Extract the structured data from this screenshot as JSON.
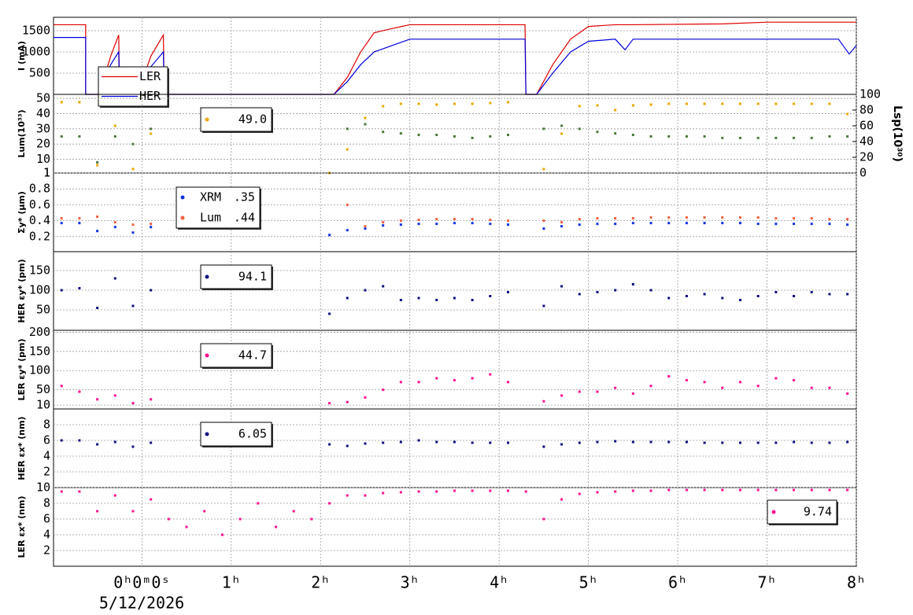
{
  "chart_data": {
    "xlim": [
      -0.99,
      8
    ],
    "xticks": [
      {
        "value": 0,
        "label": "0ʰ0ᵐ0ˢ"
      },
      {
        "value": 1,
        "label": "1ʰ"
      },
      {
        "value": 2,
        "label": "2ʰ"
      },
      {
        "value": 3,
        "label": "3ʰ"
      },
      {
        "value": 4,
        "label": "4ʰ"
      },
      {
        "value": 5,
        "label": "5ʰ"
      },
      {
        "value": 6,
        "label": "6ʰ"
      },
      {
        "value": 7,
        "label": "7ʰ"
      },
      {
        "value": 8,
        "label": "8ʰ"
      }
    ],
    "xlabel": "5/12/2026",
    "grid": true,
    "x": [
      -0.9,
      -0.7,
      -0.5,
      -0.3,
      -0.1,
      0.1,
      0.3,
      0.5,
      0.7,
      0.9,
      1.1,
      1.3,
      1.5,
      1.7,
      1.9,
      2.1,
      2.3,
      2.5,
      2.7,
      2.9,
      3.1,
      3.3,
      3.5,
      3.7,
      3.9,
      4.1,
      4.3,
      4.5,
      4.7,
      4.9,
      5.1,
      5.3,
      5.5,
      5.7,
      5.9,
      6.1,
      6.3,
      6.5,
      6.7,
      6.9,
      7.1,
      7.3,
      7.5,
      7.7,
      7.9
    ],
    "panels": [
      {
        "type": "line",
        "ylabel": "I (mA)",
        "ylim": [
          0,
          1815
        ],
        "yticks": [
          500,
          1000,
          1500
        ],
        "x": [
          -0.99,
          -0.63,
          -0.63,
          -0.48,
          -0.35,
          -0.26,
          -0.25,
          -0.05,
          0.1,
          0.24,
          0.25,
          2.15,
          2.3,
          2.45,
          2.6,
          2.8,
          3.0,
          4.29,
          4.3,
          4.42,
          4.6,
          4.8,
          5.0,
          5.3,
          5.41,
          5.5,
          6.5,
          7.0,
          7.8,
          7.92,
          8.0
        ],
        "series": [
          {
            "name": "LER",
            "color": "#dd0000",
            "values": [
              1640,
              1640,
              0,
              0,
              900,
              1400,
              0,
              0,
              900,
              1400,
              0,
              0,
              400,
              1000,
              1450,
              1550,
              1640,
              1640,
              0,
              0,
              700,
              1300,
              1600,
              1640,
              1640,
              1640,
              1660,
              1700,
              1700,
              1700,
              1700
            ]
          },
          {
            "name": "HER",
            "color": "#0000dd",
            "values": [
              1340,
              1340,
              0,
              0,
              700,
              1000,
              0,
              0,
              650,
              1000,
              0,
              0,
              300,
              700,
              1000,
              1150,
              1300,
              1300,
              0,
              0,
              500,
              1000,
              1250,
              1300,
              1050,
              1300,
              1300,
              1300,
              1300,
              950,
              1150
            ]
          }
        ]
      },
      {
        "type": "scatter",
        "ylabel": "Lum(10³³)",
        "ylim": [
          1,
          52.6
        ],
        "yticks": [
          1,
          10,
          20,
          30,
          40,
          50
        ],
        "y2label": "Lsp(10³⁰)",
        "y2lim": [
          0,
          100
        ],
        "y2ticks": [
          0,
          20,
          40,
          60,
          80,
          100
        ],
        "series": [
          {
            "color": "#4a7a3a",
            "values": [
              25,
              25,
              8,
              25,
              20,
              30,
              null,
              null,
              null,
              null,
              null,
              null,
              null,
              null,
              null,
              1,
              30,
              33,
              28,
              27,
              26,
              26,
              25,
              24,
              25,
              26,
              null,
              30,
              32,
              30,
              28,
              27,
              26,
              25,
              25,
              25,
              25,
              24,
              24,
              24,
              24,
              24,
              24,
              25,
              25
            ]
          },
          {
            "color": "#e8a800",
            "axis": "y2",
            "legend_value": "49.0",
            "values": [
              90,
              90,
              10,
              60,
              5,
              50,
              null,
              null,
              null,
              null,
              null,
              null,
              null,
              null,
              null,
              0,
              30,
              70,
              85,
              88,
              88,
              87,
              88,
              88,
              89,
              90,
              null,
              5,
              50,
              85,
              86,
              80,
              86,
              87,
              88,
              88,
              88,
              88,
              88,
              88,
              88,
              88,
              88,
              88,
              75
            ]
          }
        ]
      },
      {
        "type": "scatter",
        "ylabel": "Σy* (μm)",
        "ylim": [
          0.01,
          1.0
        ],
        "yticks": [
          0.2,
          0.4,
          0.6,
          0.8,
          1
        ],
        "series": [
          {
            "name": "XRM",
            "legend_value": ".35",
            "color": "#1030e0",
            "values": [
              0.37,
              0.37,
              0.27,
              0.32,
              0.25,
              0.32,
              null,
              null,
              null,
              null,
              null,
              null,
              null,
              null,
              null,
              0.22,
              0.28,
              0.3,
              0.34,
              0.35,
              0.36,
              0.36,
              0.37,
              0.37,
              0.36,
              0.35,
              null,
              0.3,
              0.33,
              0.35,
              0.36,
              0.36,
              0.37,
              0.37,
              0.37,
              0.37,
              0.37,
              0.37,
              0.37,
              0.36,
              0.36,
              0.36,
              0.36,
              0.36,
              0.35
            ]
          },
          {
            "name": "Lum",
            "legend_value": ".44",
            "color": "#f06040",
            "values": [
              0.43,
              0.43,
              0.45,
              0.38,
              0.35,
              0.36,
              null,
              null,
              null,
              null,
              null,
              null,
              null,
              null,
              null,
              null,
              0.6,
              0.33,
              0.38,
              0.4,
              0.41,
              0.42,
              0.42,
              0.42,
              0.41,
              0.4,
              null,
              0.4,
              0.38,
              0.42,
              0.43,
              0.43,
              0.43,
              0.44,
              0.44,
              0.44,
              0.44,
              0.44,
              0.44,
              0.44,
              0.43,
              0.43,
              0.43,
              0.42,
              0.42
            ]
          }
        ]
      },
      {
        "type": "scatter",
        "ylabel": "HER εy* (pm)",
        "ylim": [
          -2,
          198
        ],
        "yticks": [
          50,
          100,
          150
        ],
        "series": [
          {
            "legend_value": "94.1",
            "color": "#101080",
            "values": [
              100,
              105,
              55,
              130,
              60,
              100,
              null,
              null,
              null,
              null,
              null,
              null,
              null,
              null,
              null,
              40,
              80,
              100,
              110,
              75,
              80,
              75,
              80,
              75,
              85,
              95,
              null,
              60,
              110,
              90,
              95,
              100,
              115,
              100,
              80,
              85,
              90,
              80,
              75,
              85,
              95,
              85,
              95,
              90,
              90
            ]
          }
        ]
      },
      {
        "type": "scatter",
        "ylabel": "LER εy* (pm)",
        "ylim": [
          0,
          205
        ],
        "yticks": [
          10,
          50,
          100,
          150,
          200
        ],
        "series": [
          {
            "legend_value": "44.7",
            "color": "#ff1090",
            "values": [
              60,
              45,
              25,
              35,
              15,
              25,
              null,
              null,
              null,
              null,
              null,
              null,
              null,
              null,
              null,
              15,
              18,
              30,
              50,
              70,
              70,
              80,
              75,
              80,
              90,
              70,
              null,
              20,
              35,
              45,
              45,
              55,
              40,
              60,
              85,
              75,
              70,
              55,
              70,
              60,
              80,
              75,
              55,
              55,
              40
            ]
          }
        ]
      },
      {
        "type": "scatter",
        "ylabel": "HER εx* (nm)",
        "ylim": [
          0,
          10
        ],
        "yticks": [
          2,
          4,
          6,
          8
        ],
        "series": [
          {
            "legend_value": "6.05",
            "color": "#101080",
            "values": [
              6,
              6,
              5.5,
              5.8,
              5.2,
              5.7,
              null,
              null,
              null,
              null,
              null,
              null,
              null,
              null,
              null,
              5.5,
              5.3,
              5.6,
              5.7,
              5.8,
              6,
              5.8,
              5.8,
              5.7,
              5.7,
              5.7,
              null,
              5.2,
              5.5,
              5.7,
              5.8,
              5.9,
              5.8,
              5.8,
              5.8,
              5.8,
              5.7,
              5.7,
              5.7,
              5.7,
              5.7,
              5.8,
              5.7,
              5.7,
              5.8
            ]
          }
        ]
      },
      {
        "type": "scatter",
        "ylabel": "LER εx* (nm)",
        "ylim": [
          0,
          10
        ],
        "yticks": [
          2,
          4,
          6,
          8,
          10
        ],
        "series": [
          {
            "legend_value": "9.74",
            "color": "#ff1090",
            "values": [
              9.5,
              9.5,
              7,
              9,
              7,
              8.5,
              6,
              5,
              7,
              4,
              6,
              8,
              5,
              7,
              6,
              8,
              9,
              9,
              9.3,
              9.4,
              9.5,
              9.5,
              9.6,
              9.6,
              9.6,
              9.6,
              9.5,
              6,
              8.5,
              9.2,
              9.4,
              9.5,
              9.6,
              9.6,
              9.7,
              9.7,
              9.7,
              9.7,
              9.7,
              9.7,
              9.7,
              9.7,
              9.7,
              9.7,
              9.7
            ]
          }
        ]
      }
    ]
  }
}
